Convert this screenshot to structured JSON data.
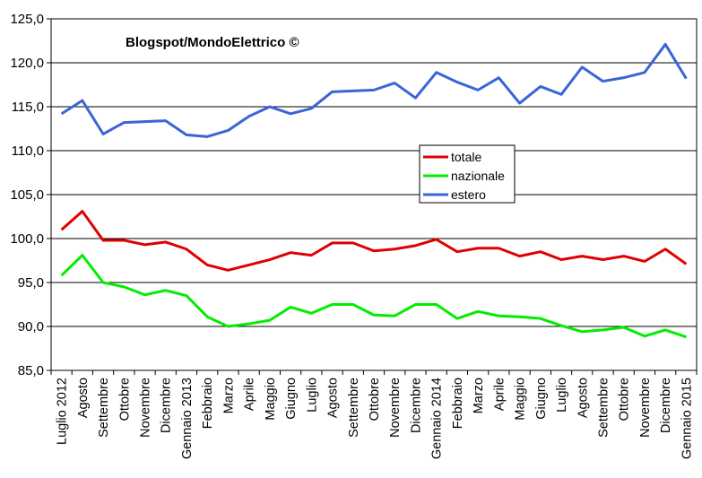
{
  "chart_data": {
    "type": "line",
    "title": "Blogspot/MondoElettrico ©",
    "xlabel": "",
    "ylabel": "",
    "ylim": [
      85,
      125
    ],
    "yticks": [
      "85,0",
      "90,0",
      "95,0",
      "100,0",
      "105,0",
      "110,0",
      "115,0",
      "120,0",
      "125,0"
    ],
    "grid": "horizontal",
    "legend_position": "center-right",
    "categories": [
      "Luglio 2012",
      "Agosto",
      "Settembre",
      "Ottobre",
      "Novembre",
      "Dicembre",
      "Gennaio 2013",
      "Febbraio",
      "Marzo",
      "Aprile",
      "Maggio",
      "Giugno",
      "Luglio",
      "Agosto",
      "Settembre",
      "Ottobre",
      "Novembre",
      "Dicembre",
      "Gennaio 2014",
      "Febbraio",
      "Marzo",
      "Aprile",
      "Maggio",
      "Giugno",
      "Luglio",
      "Agosto",
      "Settembre",
      "Ottobre",
      "Novembre",
      "Dicembre",
      "Gennaio 2015"
    ],
    "series": [
      {
        "name": "totale",
        "color": "#e00000",
        "values": [
          101.0,
          103.1,
          99.8,
          99.8,
          99.3,
          99.6,
          98.8,
          97.0,
          96.4,
          97.0,
          97.6,
          98.4,
          98.1,
          99.5,
          99.5,
          98.6,
          98.8,
          99.2,
          99.9,
          98.5,
          98.9,
          98.9,
          98.0,
          98.5,
          97.6,
          98.0,
          97.6,
          98.0,
          97.4,
          98.8,
          97.1
        ]
      },
      {
        "name": "nazionale",
        "color": "#00ee00",
        "values": [
          95.8,
          98.1,
          95.0,
          94.5,
          93.6,
          94.1,
          93.5,
          91.1,
          90.0,
          90.3,
          90.7,
          92.2,
          91.5,
          92.5,
          92.5,
          91.3,
          91.2,
          92.5,
          92.5,
          90.9,
          91.7,
          91.2,
          91.1,
          90.9,
          90.1,
          89.4,
          89.6,
          89.9,
          88.9,
          89.6,
          88.8
        ]
      },
      {
        "name": "estero",
        "color": "#3a64d8",
        "values": [
          114.2,
          115.7,
          111.9,
          113.2,
          113.3,
          113.4,
          111.8,
          111.6,
          112.3,
          113.9,
          115.0,
          114.2,
          114.8,
          116.7,
          116.8,
          116.9,
          117.7,
          116.0,
          118.9,
          117.8,
          116.9,
          118.3,
          115.4,
          117.3,
          116.4,
          119.5,
          117.9,
          118.3,
          118.9,
          122.1,
          118.2
        ]
      }
    ]
  }
}
